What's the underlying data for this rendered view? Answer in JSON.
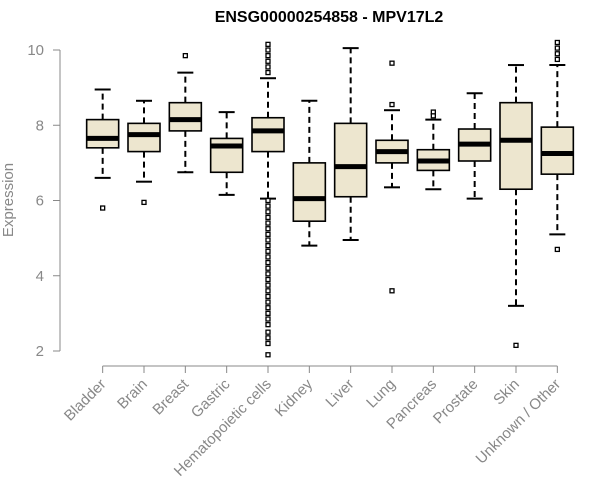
{
  "chart_data": {
    "type": "boxplot",
    "title": "ENSG00000254858 - MPV17L2",
    "xlabel": "",
    "ylabel": "Expression",
    "ylim": [
      1.8,
      10.4
    ],
    "yticks": [
      2,
      4,
      6,
      8,
      10
    ],
    "grid": false,
    "colors": {
      "box_fill": "#ede6cf",
      "box_stroke": "#000000",
      "median": "#000000",
      "axis": "#888888",
      "label": "#888888"
    },
    "categories": [
      "Bladder",
      "Brain",
      "Breast",
      "Gastric",
      "Hematopoietic cells",
      "Kidney",
      "Liver",
      "Lung",
      "Pancreas",
      "Prostate",
      "Skin",
      "Unknown / Other"
    ],
    "boxes": [
      {
        "q1": 7.4,
        "median": 7.65,
        "q3": 8.15,
        "whisker_low": 6.6,
        "whisker_high": 8.95,
        "outliers": [
          5.8
        ]
      },
      {
        "q1": 7.3,
        "median": 7.75,
        "q3": 8.05,
        "whisker_low": 6.5,
        "whisker_high": 8.65,
        "outliers": [
          5.95
        ]
      },
      {
        "q1": 7.85,
        "median": 8.15,
        "q3": 8.6,
        "whisker_low": 6.75,
        "whisker_high": 9.4,
        "outliers": [
          9.85
        ]
      },
      {
        "q1": 6.75,
        "median": 7.45,
        "q3": 7.65,
        "whisker_low": 6.15,
        "whisker_high": 8.35,
        "outliers": []
      },
      {
        "q1": 7.3,
        "median": 7.85,
        "q3": 8.2,
        "whisker_low": 6.05,
        "whisker_high": 9.25,
        "outliers": [
          10.15,
          10.0,
          9.85,
          9.7,
          9.55,
          9.4,
          6.0,
          5.85,
          5.7,
          5.55,
          5.4,
          5.25,
          5.1,
          4.95,
          4.8,
          4.65,
          4.5,
          4.35,
          4.2,
          4.05,
          3.9,
          3.75,
          3.6,
          3.45,
          3.3,
          3.15,
          3.0,
          2.85,
          2.7,
          2.5,
          2.35,
          2.2,
          1.9
        ]
      },
      {
        "q1": 5.45,
        "median": 6.05,
        "q3": 7.0,
        "whisker_low": 4.8,
        "whisker_high": 8.65,
        "outliers": []
      },
      {
        "q1": 6.1,
        "median": 6.9,
        "q3": 8.05,
        "whisker_low": 4.95,
        "whisker_high": 10.05,
        "outliers": []
      },
      {
        "q1": 7.0,
        "median": 7.3,
        "q3": 7.6,
        "whisker_low": 6.35,
        "whisker_high": 8.4,
        "outliers": [
          9.65,
          8.55,
          3.6
        ]
      },
      {
        "q1": 6.8,
        "median": 7.05,
        "q3": 7.35,
        "whisker_low": 6.3,
        "whisker_high": 8.15,
        "outliers": [
          8.35,
          8.25
        ]
      },
      {
        "q1": 7.05,
        "median": 7.5,
        "q3": 7.9,
        "whisker_low": 6.05,
        "whisker_high": 8.85,
        "outliers": []
      },
      {
        "q1": 6.3,
        "median": 7.6,
        "q3": 8.6,
        "whisker_low": 3.2,
        "whisker_high": 9.6,
        "outliers": [
          2.15
        ]
      },
      {
        "q1": 6.7,
        "median": 7.25,
        "q3": 7.95,
        "whisker_low": 5.1,
        "whisker_high": 9.6,
        "outliers": [
          10.2,
          10.05,
          9.9,
          9.75,
          4.7
        ]
      }
    ]
  }
}
